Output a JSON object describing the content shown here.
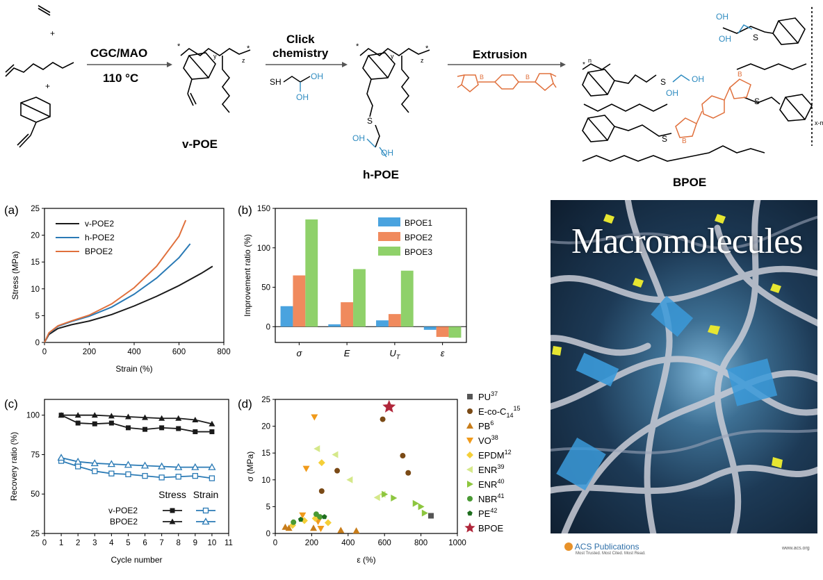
{
  "scheme": {
    "step1_top": "CGC/MAO",
    "step1_bottom": "110 °C",
    "step2_top": "Click",
    "step2_top2": "chemistry",
    "step3_top": "Extrusion",
    "reagent_sh": "SH",
    "oh": "OH",
    "plus": "+",
    "x": "x",
    "y": "y",
    "z": "z",
    "star": "*",
    "s": "S",
    "b": "B",
    "o": "O",
    "xm": "x-m",
    "n": "n",
    "names": [
      "v-POE",
      "h-POE",
      "BPOE"
    ]
  },
  "panel_labels": [
    "(a)",
    "(b)",
    "(c)",
    "(d)"
  ],
  "colors": {
    "black": "#1a1a1a",
    "blue": "#2a7ab5",
    "orange": "#e0703c",
    "bar_blue": "#4aa3df",
    "bar_orange": "#f08a5d",
    "bar_green": "#8fd16a",
    "cover_title": "#ffffff"
  },
  "chart_data": [
    {
      "type": "line",
      "panel": "(a)",
      "xlabel": "Strain (%)",
      "ylabel": "Stress (MPa)",
      "xlim": [
        0,
        800
      ],
      "ylim": [
        0,
        25
      ],
      "xticks": [
        0,
        200,
        400,
        600,
        800
      ],
      "yticks": [
        0,
        5,
        10,
        15,
        20,
        25
      ],
      "series": [
        {
          "name": "v-POE2",
          "color": "#1a1a1a",
          "x": [
            0,
            20,
            60,
            120,
            200,
            300,
            400,
            500,
            600,
            700,
            750
          ],
          "y": [
            0,
            1.5,
            2.6,
            3.3,
            4.0,
            5.2,
            6.8,
            8.6,
            10.6,
            12.9,
            14.2
          ]
        },
        {
          "name": "h-POE2",
          "color": "#2a7ab5",
          "x": [
            0,
            20,
            60,
            120,
            200,
            300,
            400,
            500,
            600,
            650
          ],
          "y": [
            0,
            1.7,
            3.0,
            3.9,
            4.9,
            6.6,
            9.0,
            12.0,
            15.8,
            18.4
          ]
        },
        {
          "name": "BPOE2",
          "color": "#e0703c",
          "x": [
            0,
            20,
            60,
            120,
            200,
            300,
            400,
            500,
            600,
            630
          ],
          "y": [
            0,
            1.8,
            3.1,
            4.0,
            5.1,
            7.2,
            10.2,
            14.2,
            19.8,
            22.8
          ]
        }
      ]
    },
    {
      "type": "bar",
      "panel": "(b)",
      "ylabel": "Improvement ratio (%)",
      "ylim": [
        -20,
        150
      ],
      "yticks": [
        0,
        50,
        100,
        150
      ],
      "categories": [
        "σ",
        "E",
        "U_T",
        "ε"
      ],
      "category_labels": [
        {
          "main": "σ",
          "sub": ""
        },
        {
          "main": "E",
          "sub": ""
        },
        {
          "main": "U",
          "sub": "T"
        },
        {
          "main": "ε",
          "sub": ""
        }
      ],
      "series": [
        {
          "name": "BPOE1",
          "color": "#4aa3df",
          "values": [
            26,
            3,
            8,
            -4
          ]
        },
        {
          "name": "BPOE2",
          "color": "#f08a5d",
          "values": [
            65,
            31,
            16,
            -13
          ]
        },
        {
          "name": "BPOE3",
          "color": "#8fd16a",
          "values": [
            136,
            73,
            71,
            -14
          ]
        }
      ]
    },
    {
      "type": "line",
      "panel": "(c)",
      "xlabel": "Cycle number",
      "ylabel": "Recovery ratio (%)",
      "xlim": [
        0,
        11
      ],
      "ylim": [
        25,
        110
      ],
      "xticks": [
        0,
        1,
        2,
        3,
        4,
        5,
        6,
        7,
        8,
        9,
        10,
        11
      ],
      "yticks": [
        25,
        50,
        75,
        100
      ],
      "legend_headers": [
        "Stress",
        "Strain"
      ],
      "legend_rows": [
        "v-POE2",
        "BPOE2"
      ],
      "x": [
        1,
        2,
        3,
        4,
        5,
        6,
        7,
        8,
        9,
        10
      ],
      "series": [
        {
          "name": "v-POE2 Stress",
          "marker": "square-filled",
          "color": "#1a1a1a",
          "values": [
            100,
            95,
            94.5,
            95,
            92,
            91,
            92,
            91.5,
            89.5,
            89.5
          ]
        },
        {
          "name": "BPOE2 Stress",
          "marker": "triangle-filled",
          "color": "#1a1a1a",
          "values": [
            100,
            100,
            100,
            99.5,
            99,
            98.5,
            98,
            98,
            97,
            94.5
          ]
        },
        {
          "name": "v-POE2 Strain",
          "marker": "square-open",
          "color": "#2a7ab5",
          "values": [
            71,
            67.5,
            64.5,
            63,
            62.5,
            61.5,
            60.5,
            61,
            61.5,
            60
          ]
        },
        {
          "name": "BPOE2 Strain",
          "marker": "triangle-open",
          "color": "#2a7ab5",
          "values": [
            73,
            70.5,
            69.5,
            69,
            68.5,
            68,
            67.5,
            67,
            67,
            67
          ]
        }
      ]
    },
    {
      "type": "scatter",
      "panel": "(d)",
      "xlabel": "ε (%)",
      "ylabel": "σ (MPa)",
      "xlim": [
        0,
        1000
      ],
      "ylim": [
        0,
        25
      ],
      "xticks": [
        0,
        200,
        400,
        600,
        800,
        1000
      ],
      "yticks": [
        0,
        5,
        10,
        15,
        20,
        25
      ],
      "series": [
        {
          "name": "PU",
          "sup": "37",
          "marker": "square",
          "color": "#555555",
          "points": [
            [
              855,
              3.3
            ]
          ]
        },
        {
          "name": "E-co-C",
          "sub": "14",
          "sup": "15",
          "marker": "circle",
          "color": "#7a4a16",
          "points": [
            [
              590,
              21.3
            ],
            [
              700,
              14.5
            ],
            [
              340,
              11.7
            ],
            [
              730,
              11.3
            ],
            [
              255,
              7.9
            ]
          ]
        },
        {
          "name": "PB",
          "sup": "6",
          "marker": "triangle-up",
          "color": "#c87d1a",
          "points": [
            [
              55,
              1.2
            ],
            [
              75,
              1.0
            ],
            [
              210,
              1.0
            ],
            [
              360,
              0.6
            ],
            [
              445,
              0.5
            ]
          ]
        },
        {
          "name": "VO",
          "sup": "38",
          "marker": "triangle-down",
          "color": "#f09a1a",
          "points": [
            [
              215,
              21.7
            ],
            [
              170,
              12.1
            ],
            [
              150,
              3.4
            ],
            [
              235,
              2.2
            ],
            [
              250,
              0.9
            ]
          ]
        },
        {
          "name": "EPDM",
          "sup": "12",
          "marker": "diamond",
          "color": "#f5cf38",
          "points": [
            [
              255,
              13.2
            ],
            [
              160,
              2.4
            ],
            [
              220,
              2.8
            ],
            [
              290,
              2.0
            ],
            [
              95,
              1.5
            ]
          ]
        },
        {
          "name": "ENR",
          "sup": "39",
          "marker": "triangle-left",
          "color": "#d5e88a",
          "points": [
            [
              230,
              15.8
            ],
            [
              330,
              14.7
            ],
            [
              410,
              10.0
            ],
            [
              560,
              6.7
            ],
            [
              590,
              7.3
            ]
          ]
        },
        {
          "name": "ENR",
          "sup": "40",
          "marker": "triangle-right",
          "color": "#8dc63f",
          "points": [
            [
              600,
              7.3
            ],
            [
              650,
              6.6
            ],
            [
              770,
              5.6
            ],
            [
              800,
              5.0
            ],
            [
              820,
              3.8
            ]
          ]
        },
        {
          "name": "NBR",
          "sup": "41",
          "marker": "circle",
          "color": "#4a9a34",
          "points": [
            [
              225,
              3.6
            ],
            [
              100,
              2.1
            ],
            [
              245,
              3.1
            ]
          ]
        },
        {
          "name": "PE",
          "sup": "42",
          "marker": "pentagon",
          "color": "#1e6e1e",
          "points": [
            [
              270,
              3.1
            ],
            [
              140,
              2.6
            ]
          ]
        },
        {
          "name": "BPOE",
          "sup": "",
          "marker": "star",
          "color": "#b0263a",
          "points": [
            [
              625,
              23.6
            ]
          ]
        }
      ]
    }
  ],
  "cover": {
    "title": "Macromolecules",
    "publisher": "ACS Publications",
    "tagline": "Most Trusted. Most Cited. Most Read.",
    "url": "www.acs.org"
  }
}
